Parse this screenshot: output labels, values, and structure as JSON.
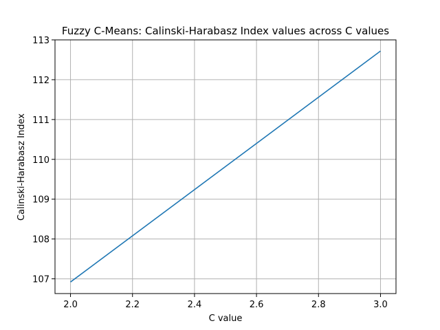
{
  "chart_data": {
    "type": "line",
    "title": "Fuzzy C-Means: Calinski-Harabasz Index values across C values",
    "xlabel": "C value",
    "ylabel": "Calinski-Harabasz Index",
    "xlim": [
      1.95,
      3.05
    ],
    "ylim": [
      106.63,
      113.0
    ],
    "xticks": [
      "2.0",
      "2.2",
      "2.4",
      "2.6",
      "2.8",
      "3.0"
    ],
    "yticks": [
      "107",
      "108",
      "109",
      "110",
      "111",
      "112",
      "113"
    ],
    "grid": true,
    "legend": "none",
    "series": [
      {
        "color": "#1f77b4",
        "x": [
          2.0,
          3.0
        ],
        "y": [
          106.92,
          112.72
        ]
      }
    ]
  }
}
